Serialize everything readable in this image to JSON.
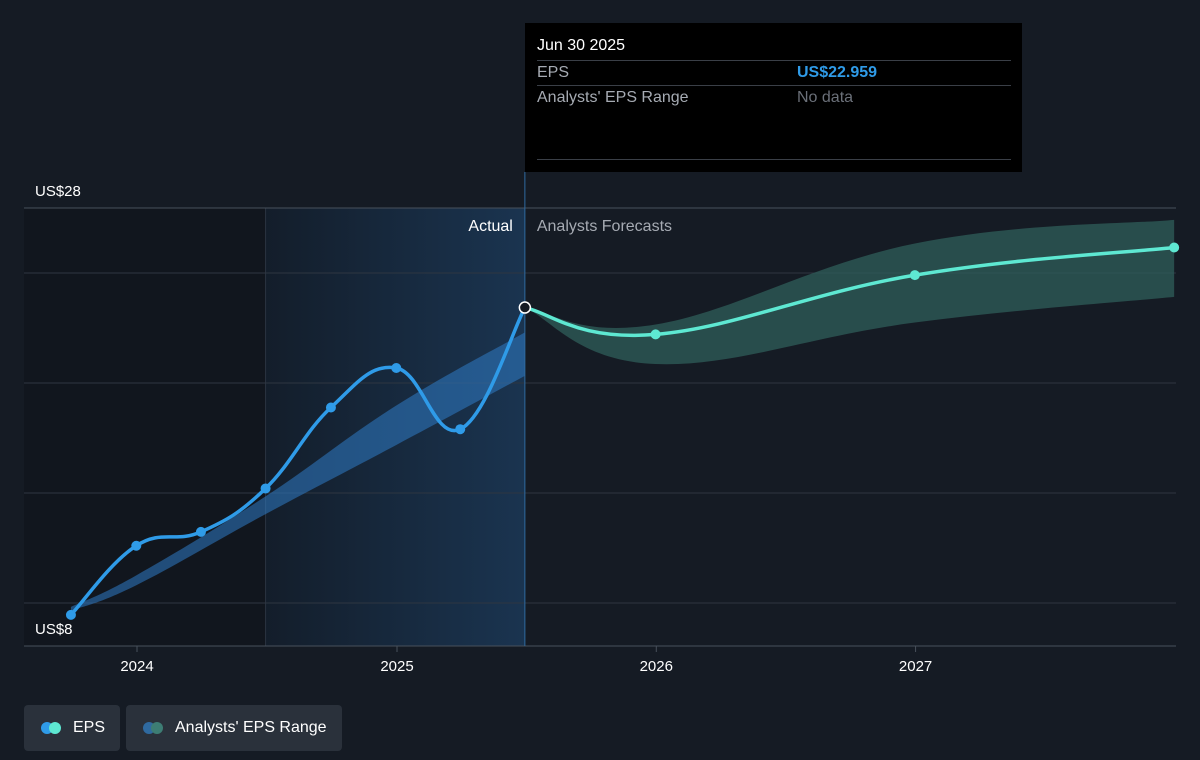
{
  "tooltip": {
    "date": "Jun 30 2025",
    "eps_label": "EPS",
    "eps_value": "US$22.959",
    "range_label": "Analysts' EPS Range",
    "range_value": "No data"
  },
  "region_labels": {
    "actual": "Actual",
    "forecast": "Analysts Forecasts"
  },
  "legend": {
    "eps": "EPS",
    "range": "Analysts' EPS Range"
  },
  "colors": {
    "background": "#151b24",
    "eps_actual": "#2f9be8",
    "eps_forecast": "#5ee8d2",
    "range_actual": "#2f7cc7",
    "range_forecast": "#2f5f5a",
    "highlight": "#1a3450"
  },
  "chart_data": {
    "type": "line",
    "y_axis": {
      "min": 8,
      "max": 28,
      "tick_labels": [
        "US$28",
        "US$8"
      ]
    },
    "x_axis": {
      "ticks": [
        "2024",
        "2025",
        "2026",
        "2027"
      ]
    },
    "series": [
      {
        "name": "EPS",
        "segment": "actual",
        "points": [
          {
            "x": "2023-09-30",
            "y": 7.4
          },
          {
            "x": "2023-12-31",
            "y": 10.9
          },
          {
            "x": "2024-03-31",
            "y": 11.6
          },
          {
            "x": "2024-06-30",
            "y": 13.8
          },
          {
            "x": "2024-09-30",
            "y": 17.9
          },
          {
            "x": "2024-12-31",
            "y": 19.9
          },
          {
            "x": "2025-03-31",
            "y": 16.8
          },
          {
            "x": "2025-06-30",
            "y": 22.959
          }
        ]
      },
      {
        "name": "EPS",
        "segment": "forecast",
        "points": [
          {
            "x": "2025-06-30",
            "y": 22.959
          },
          {
            "x": "2025-12-31",
            "y": 21.6
          },
          {
            "x": "2026-12-31",
            "y": 24.6
          },
          {
            "x": "2027-12-31",
            "y": 26.0
          }
        ]
      }
    ],
    "ranges": [
      {
        "name": "Analysts' EPS Range",
        "segment": "actual",
        "points": [
          {
            "x": "2023-09-30",
            "low": 7.6,
            "high": 7.8
          },
          {
            "x": "2023-12-31",
            "low": 8.9,
            "high": 9.4
          },
          {
            "x": "2024-06-30",
            "low": 12.5,
            "high": 13.4
          },
          {
            "x": "2024-12-31",
            "low": 16.0,
            "high": 18.0
          },
          {
            "x": "2025-06-30",
            "low": 19.5,
            "high": 21.7
          }
        ]
      },
      {
        "name": "Analysts' EPS Range",
        "segment": "forecast",
        "points": [
          {
            "x": "2025-06-30",
            "low": 22.96,
            "high": 22.96
          },
          {
            "x": "2025-12-31",
            "low": 20.1,
            "high": 22.1
          },
          {
            "x": "2026-12-31",
            "low": 22.2,
            "high": 26.2
          },
          {
            "x": "2027-12-31",
            "low": 23.5,
            "high": 27.4
          }
        ]
      }
    ],
    "highlight_start": "2024-06-30",
    "divider": "2025-06-30"
  }
}
